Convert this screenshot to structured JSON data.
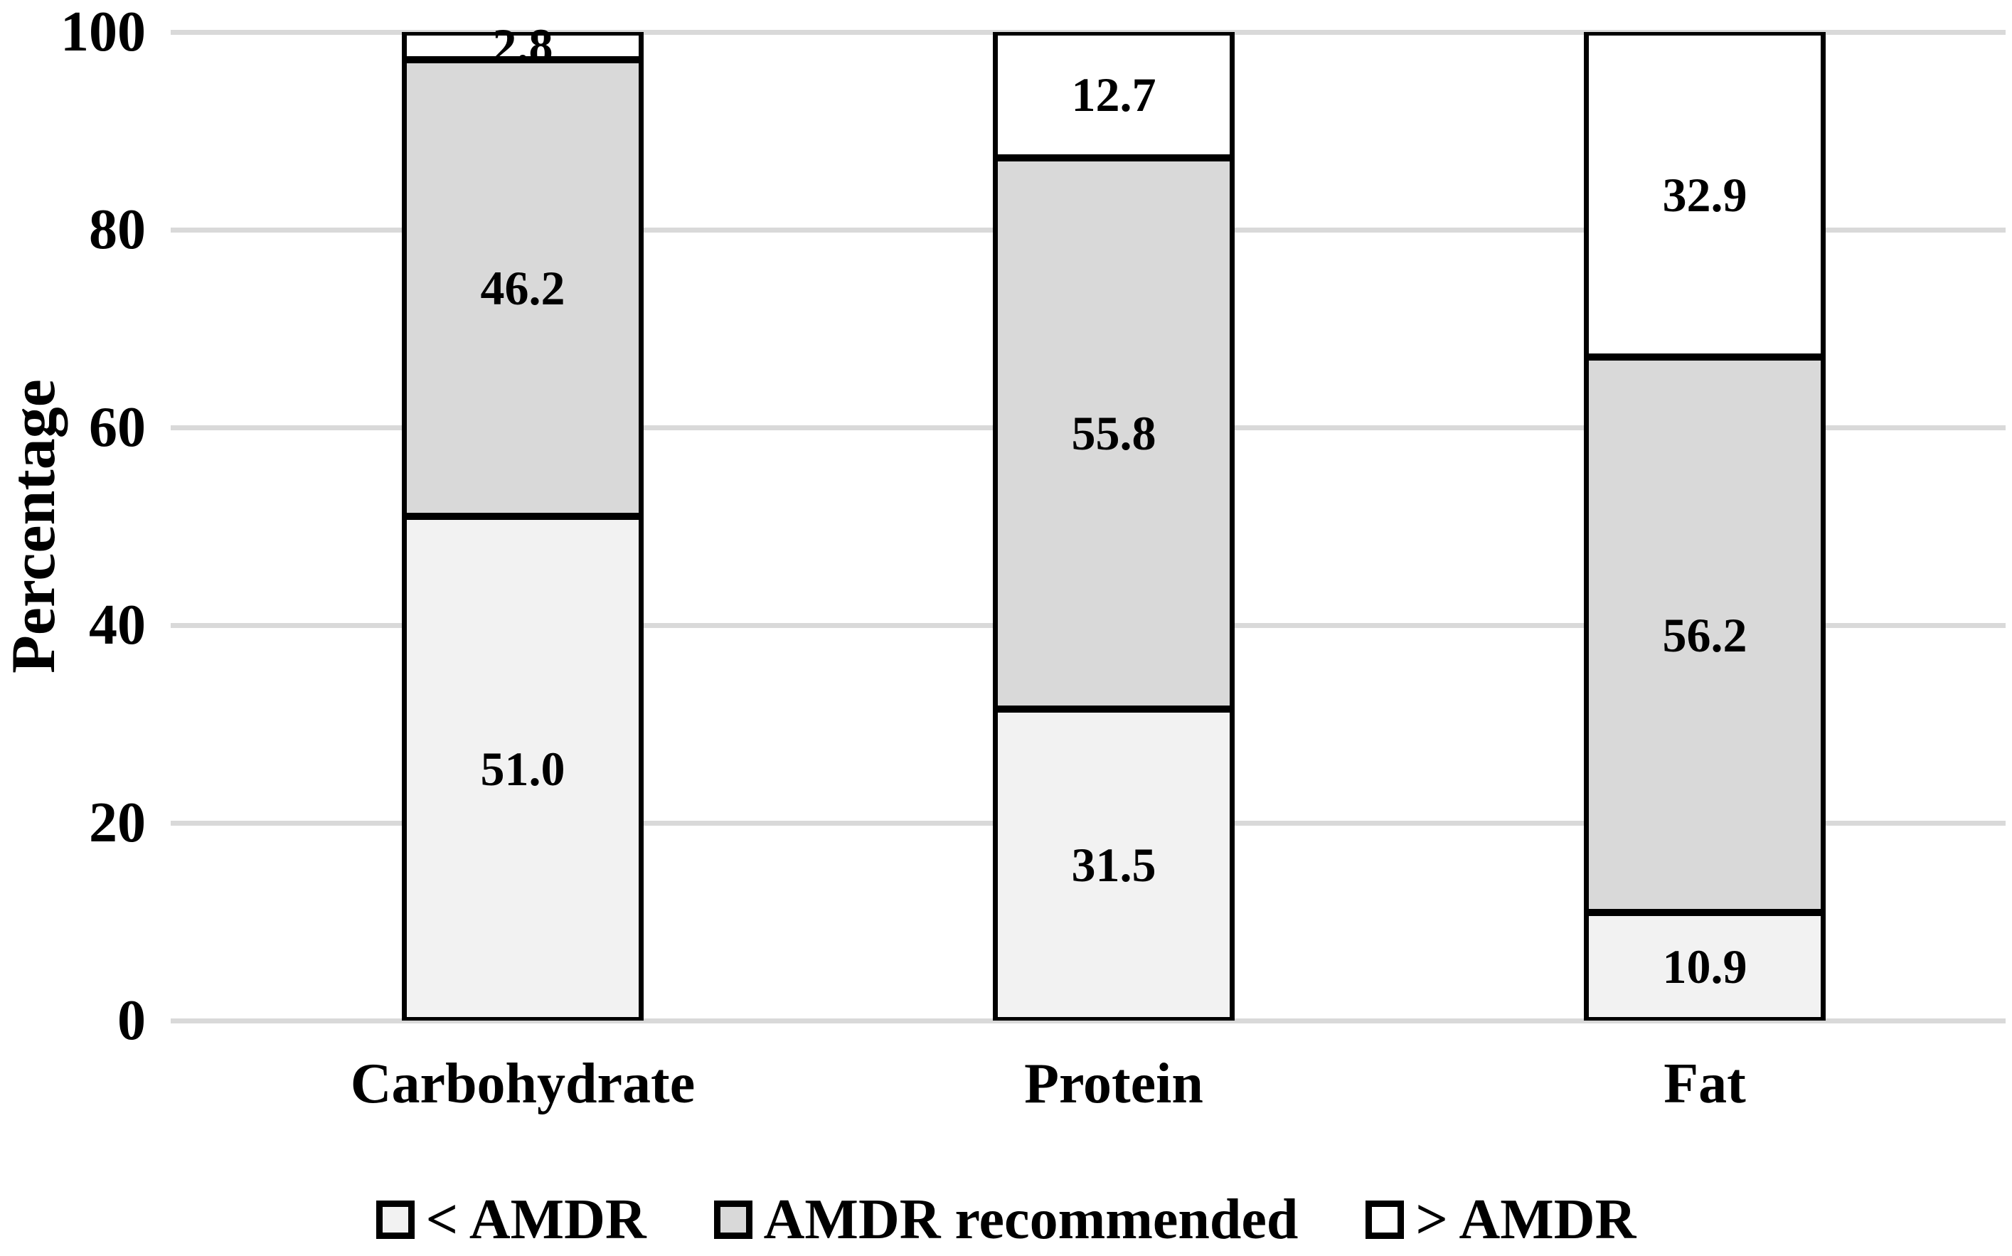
{
  "chart_data": {
    "type": "bar",
    "subtype": "stacked-100",
    "title": "",
    "xlabel": "",
    "ylabel": "Percentage",
    "ylim": [
      0,
      100
    ],
    "yticks": [
      "100",
      "80",
      "60",
      "40",
      "20",
      "0"
    ],
    "grid": true,
    "gridline_color": "#d9d9d9",
    "bar_border_color": "#000000",
    "legend_position": "bottom",
    "value_label_position": "center",
    "categories": [
      "Carbohydrate",
      "Protein",
      "Fat"
    ],
    "series": [
      {
        "name": "< AMDR",
        "color": "#f2f2f2",
        "values": [
          51.0,
          31.5,
          10.9
        ],
        "labels": [
          "51.0",
          "31.5",
          "10.9"
        ]
      },
      {
        "name": "AMDR recommended",
        "color": "#d9d9d9",
        "values": [
          46.2,
          55.8,
          56.2
        ],
        "labels": [
          "46.2",
          "55.8",
          "56.2"
        ]
      },
      {
        "name": "> AMDR",
        "color": "#ffffff",
        "values": [
          2.8,
          12.7,
          32.9
        ],
        "labels": [
          "2.8",
          "12.7",
          "32.9"
        ]
      }
    ]
  }
}
